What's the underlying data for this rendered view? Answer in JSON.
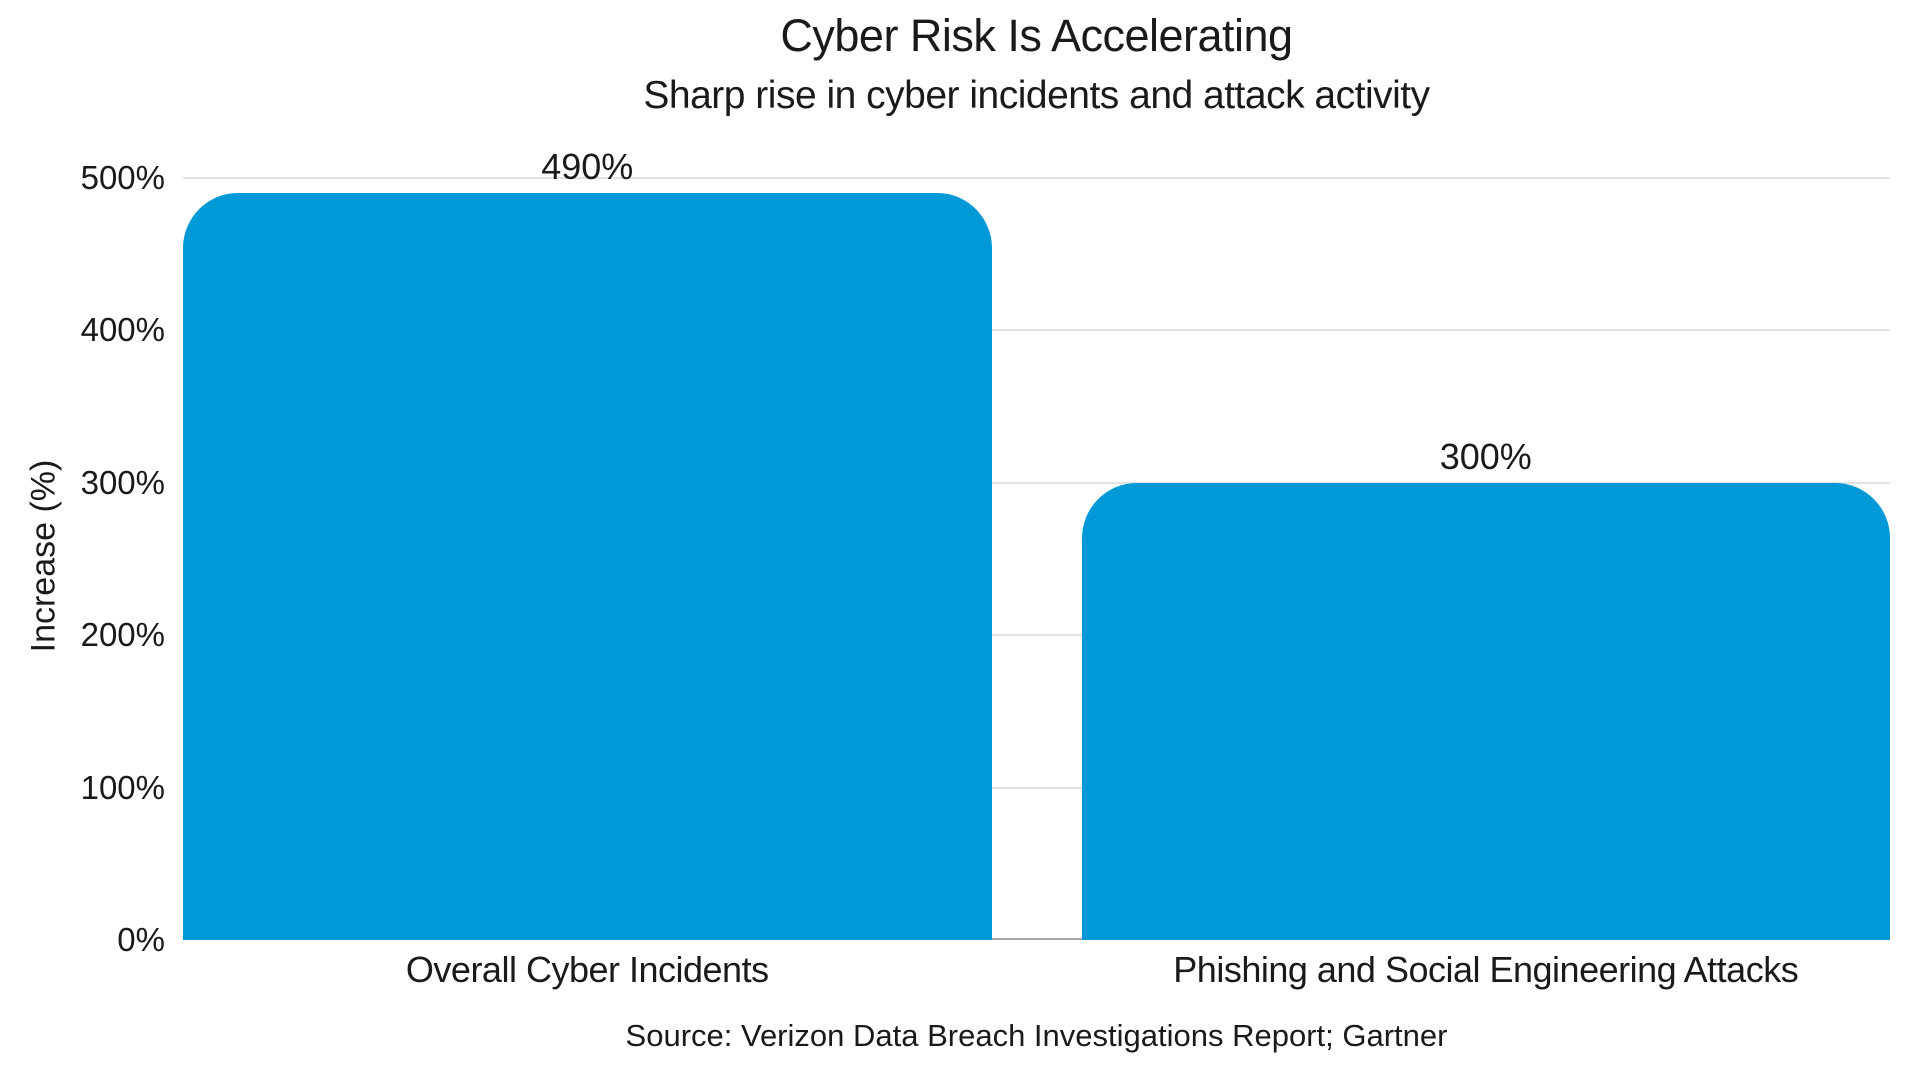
{
  "chart_data": {
    "type": "bar",
    "title": "Cyber Risk Is Accelerating",
    "subtitle": "Sharp rise in cyber incidents and attack activity",
    "categories": [
      "Overall Cyber Incidents",
      "Phishing and Social Engineering Attacks"
    ],
    "values": [
      490,
      300
    ],
    "value_labels": [
      "490%",
      "300%"
    ],
    "xlabel": "",
    "ylabel": "Increase (%)",
    "ylim": [
      0,
      500
    ],
    "yticks": [
      0,
      100,
      200,
      300,
      400,
      500
    ],
    "ytick_labels": [
      "0%",
      "100%",
      "200%",
      "300%",
      "400%",
      "500%"
    ],
    "grid": "horizontal",
    "legend": "none",
    "source": "Source: Verizon Data Breach Investigations Report; Gartner",
    "bar_color": "#0099d8",
    "gridline_color": "#e3e3e3",
    "axis_line_color": "#a8a8a8",
    "text_color": "#1a1a1a",
    "background_color": "#ffffff"
  }
}
